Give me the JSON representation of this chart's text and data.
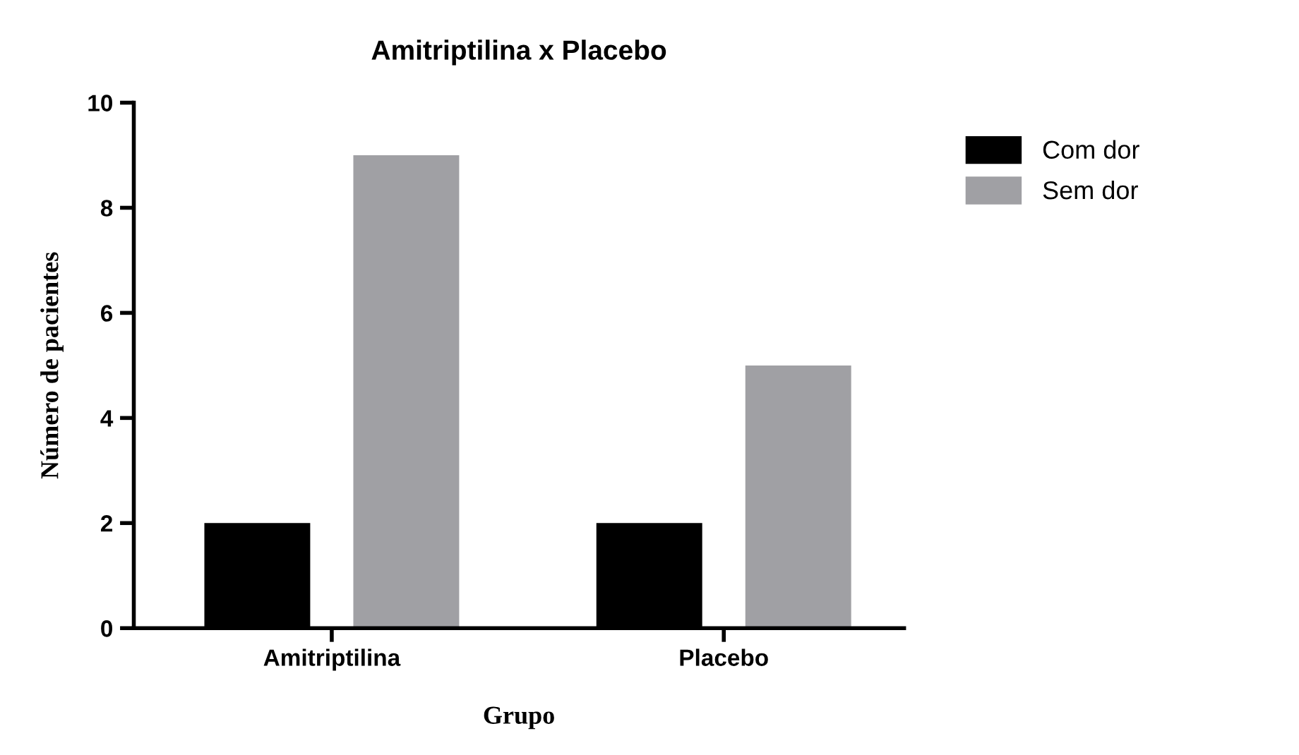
{
  "chart_data": {
    "type": "bar",
    "title": "Amitriptilina x Placebo",
    "xlabel": "Grupo",
    "ylabel": "Número de pacientes",
    "categories": [
      "Amitriptilina",
      "Placebo"
    ],
    "series": [
      {
        "name": "Com dor",
        "color": "#000000",
        "values": [
          2,
          2
        ]
      },
      {
        "name": "Sem dor",
        "color": "#a0a0a4",
        "values": [
          9,
          5
        ]
      }
    ],
    "ylim": [
      0,
      10
    ],
    "yticks": [
      0,
      2,
      4,
      6,
      8,
      10
    ],
    "grid": false,
    "legend": "right"
  }
}
